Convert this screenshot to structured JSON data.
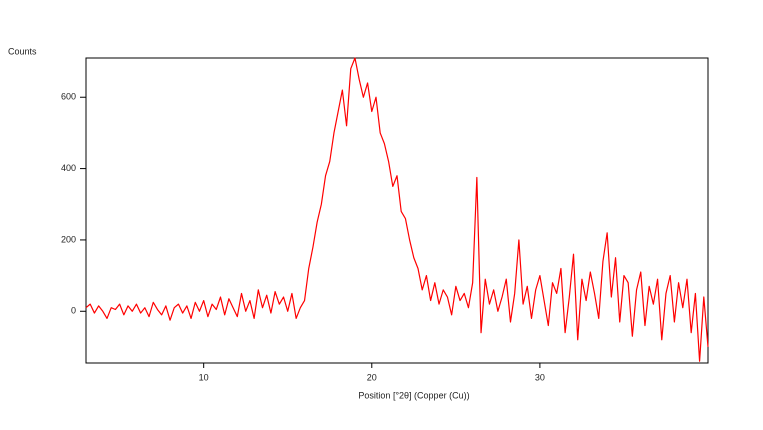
{
  "chart_data": {
    "type": "line",
    "ylabel": "Counts",
    "xlabel": "Position [°2θ] (Copper (Cu))",
    "x": [
      3,
      3.25,
      3.5,
      3.75,
      4,
      4.25,
      4.5,
      4.75,
      5,
      5.25,
      5.5,
      5.75,
      6,
      6.25,
      6.5,
      6.75,
      7,
      7.25,
      7.5,
      7.75,
      8,
      8.25,
      8.5,
      8.75,
      9,
      9.25,
      9.5,
      9.75,
      10,
      10.25,
      10.5,
      10.75,
      11,
      11.25,
      11.5,
      11.75,
      12,
      12.25,
      12.5,
      12.75,
      13,
      13.25,
      13.5,
      13.75,
      14,
      14.25,
      14.5,
      14.75,
      15,
      15.25,
      15.5,
      15.75,
      16,
      16.25,
      16.5,
      16.75,
      17,
      17.25,
      17.5,
      17.75,
      18,
      18.25,
      18.5,
      18.75,
      19,
      19.25,
      19.5,
      19.75,
      20,
      20.25,
      20.5,
      20.75,
      21,
      21.25,
      21.5,
      21.75,
      22,
      22.25,
      22.5,
      22.75,
      23,
      23.25,
      23.5,
      23.75,
      24,
      24.25,
      24.5,
      24.75,
      25,
      25.25,
      25.5,
      25.75,
      26,
      26.25,
      26.5,
      26.75,
      27,
      27.25,
      27.5,
      27.75,
      28,
      28.25,
      28.5,
      28.75,
      29,
      29.25,
      29.5,
      29.75,
      30,
      30.25,
      30.5,
      30.75,
      31,
      31.25,
      31.5,
      31.75,
      32,
      32.25,
      32.5,
      32.75,
      33,
      33.25,
      33.5,
      33.75,
      34,
      34.25,
      34.5,
      34.75,
      35,
      35.25,
      35.5,
      35.75,
      36,
      36.25,
      36.5,
      36.75,
      37,
      37.25,
      37.5,
      37.75,
      38,
      38.25,
      38.5,
      38.75,
      39,
      39.25,
      39.5,
      39.75,
      40
    ],
    "series": [
      {
        "color": "#ff0000",
        "values": [
          10,
          20,
          -5,
          15,
          0,
          -20,
          10,
          5,
          20,
          -10,
          15,
          0,
          20,
          -5,
          10,
          -15,
          25,
          5,
          -10,
          15,
          -25,
          10,
          20,
          -5,
          15,
          -20,
          25,
          0,
          30,
          -15,
          20,
          5,
          40,
          -10,
          35,
          10,
          -15,
          50,
          0,
          30,
          -20,
          60,
          10,
          45,
          -5,
          55,
          20,
          40,
          0,
          50,
          -20,
          10,
          30,
          120,
          180,
          250,
          300,
          380,
          420,
          500,
          560,
          620,
          520,
          680,
          710,
          650,
          600,
          640,
          560,
          600,
          500,
          470,
          420,
          350,
          380,
          280,
          260,
          200,
          150,
          120,
          60,
          100,
          30,
          80,
          20,
          60,
          40,
          -10,
          70,
          30,
          50,
          10,
          80,
          375,
          -60,
          90,
          20,
          60,
          0,
          40,
          90,
          -30,
          50,
          200,
          20,
          70,
          -20,
          60,
          100,
          30,
          -40,
          80,
          50,
          120,
          -60,
          40,
          160,
          -80,
          90,
          30,
          110,
          50,
          -20,
          140,
          220,
          40,
          150,
          -30,
          100,
          80,
          -70,
          60,
          110,
          -40,
          70,
          20,
          90,
          -80,
          50,
          100,
          -30,
          80,
          10,
          90,
          -60,
          50,
          -140,
          40,
          -100
        ]
      }
    ],
    "xlim": [
      3,
      40
    ],
    "ylim": [
      -145,
      710
    ],
    "xticks": [
      10,
      20,
      30
    ],
    "yticks": [
      0,
      200,
      400,
      600
    ]
  }
}
